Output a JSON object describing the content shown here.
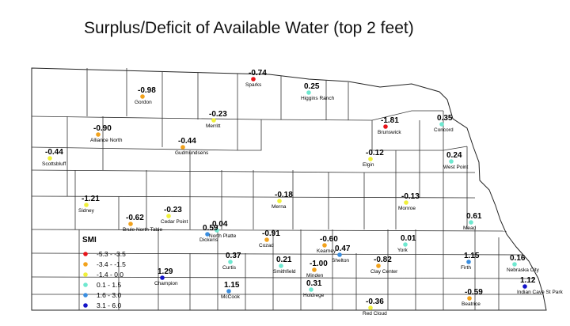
{
  "title": "Surplus/Deficit of Available Water (top 2 feet)",
  "legend": {
    "title": "SMI",
    "items": [
      {
        "label": "-5.3 - -3.5",
        "color": "#e8141a"
      },
      {
        "label": "-3.4 - -1.5",
        "color": "#f2a21c"
      },
      {
        "label": "-1.4 - 0.0",
        "color": "#f0f03a"
      },
      {
        "label": "0.1 - 1.5",
        "color": "#6fe8d0"
      },
      {
        "label": "1.6 - 3.0",
        "color": "#3a8ee0"
      },
      {
        "label": "3.1 - 6.0",
        "color": "#1414c8"
      }
    ]
  },
  "stations": [
    {
      "name": "Sparks",
      "value": "-0.74",
      "color": "#e8141a"
    },
    {
      "name": "Higgins Ranch",
      "value": "0.25",
      "color": "#6fe8d0"
    },
    {
      "name": "Gordon",
      "value": "-0.98",
      "color": "#f2a21c"
    },
    {
      "name": "Merritt",
      "value": "-0.23",
      "color": "#f0f03a"
    },
    {
      "name": "Brunswick",
      "value": "-1.81",
      "color": "#e8141a"
    },
    {
      "name": "Concord",
      "value": "0.35",
      "color": "#6fe8d0"
    },
    {
      "name": "Alliance North",
      "value": "-0.90",
      "color": "#f2a21c"
    },
    {
      "name": "Gudmundsens",
      "value": "-0.44",
      "color": "#f2a21c"
    },
    {
      "name": "Scottsbluff",
      "value": "-0.44",
      "color": "#f0f03a"
    },
    {
      "name": "Elgin",
      "value": "-0.12",
      "color": "#f0f03a"
    },
    {
      "name": "West Point",
      "value": "0.24",
      "color": "#6fe8d0"
    },
    {
      "name": "Sidney",
      "value": "-1.21",
      "color": "#f0f03a"
    },
    {
      "name": "Merna",
      "value": "-0.18",
      "color": "#f0f03a"
    },
    {
      "name": "Monroe",
      "value": "-0.13",
      "color": "#f0f03a"
    },
    {
      "name": "Cedar Point",
      "value": "-0.23",
      "color": "#f0f03a"
    },
    {
      "name": "Brule North Table",
      "value": "-0.62",
      "color": "#f2a21c"
    },
    {
      "name": "North Platte",
      "value": "0.04",
      "color": "#6fe8d0"
    },
    {
      "name": "Dickens",
      "value": "0.59",
      "color": "#3a8ee0"
    },
    {
      "name": "Cozad",
      "value": "-0.91",
      "color": "#f2a21c"
    },
    {
      "name": "Kearney",
      "value": "-0.60",
      "color": "#f2a21c"
    },
    {
      "name": "Mead",
      "value": "0.61",
      "color": "#6fe8d0"
    },
    {
      "name": "York",
      "value": "0.01",
      "color": "#6fe8d0"
    },
    {
      "name": "Shelton",
      "value": "0.47",
      "color": "#3a8ee0"
    },
    {
      "name": "Curtis",
      "value": "0.37",
      "color": "#6fe8d0"
    },
    {
      "name": "Smithfield",
      "value": "0.21",
      "color": "#6fe8d0"
    },
    {
      "name": "Minden",
      "value": "-1.00",
      "color": "#f2a21c"
    },
    {
      "name": "Clay Center",
      "value": "-0.82",
      "color": "#f2a21c"
    },
    {
      "name": "Firth",
      "value": "1.15",
      "color": "#3a8ee0"
    },
    {
      "name": "Nebraska City",
      "value": "0.16",
      "color": "#6fe8d0"
    },
    {
      "name": "Champion",
      "value": "1.29",
      "color": "#1414c8"
    },
    {
      "name": "Indian Cave St Park",
      "value": "1.12",
      "color": "#1414c8"
    },
    {
      "name": "McCook",
      "value": "1.15",
      "color": "#3a8ee0"
    },
    {
      "name": "Holdrege",
      "value": "0.31",
      "color": "#6fe8d0"
    },
    {
      "name": "Beatrice",
      "value": "-0.59",
      "color": "#f2a21c"
    },
    {
      "name": "Red Cloud",
      "value": "-0.36",
      "color": "#f0f03a"
    }
  ]
}
